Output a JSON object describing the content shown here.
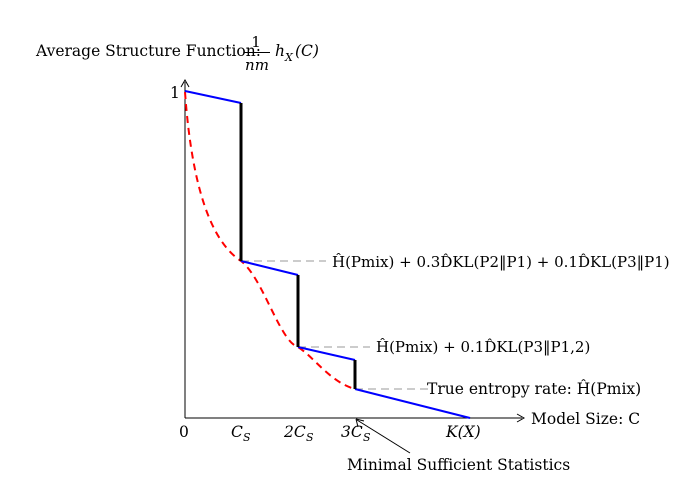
{
  "title": {
    "prefix": "Average Structure Function:",
    "frac_num": "1",
    "frac_den": "nm",
    "func": "h",
    "func_sub": "X",
    "func_arg": "(C)"
  },
  "axes": {
    "x_label": "Model Size: C",
    "y_tick": "1",
    "x_ticks": [
      {
        "base": "0",
        "sub": ""
      },
      {
        "base": "C",
        "sub": "S"
      },
      {
        "base": "2C",
        "sub": "S"
      },
      {
        "base": "3C",
        "sub": "S"
      },
      {
        "base": "K(X)",
        "sub": ""
      }
    ]
  },
  "annotations": {
    "level1": "Ĥ(Pmix) + 0.3D̂KL(P2‖P1) + 0.1D̂KL(P3‖P1)",
    "level2": "Ĥ(Pmix) + 0.1D̂KL(P3‖P1,2)",
    "level3": "True entropy rate: Ĥ(Pmix)",
    "bottom_note": "Minimal Sufficient Statistics"
  },
  "colors": {
    "structure_function": "#0000ff",
    "lower_bound": "#ff0000",
    "jumps": "#000000",
    "guides": "#999999"
  },
  "chart_data": {
    "type": "line",
    "title": "Average Structure Function",
    "xlabel": "Model Size: C",
    "x_ticks": [
      "0",
      "C_S",
      "2C_S",
      "3C_S",
      "K(X)"
    ],
    "y_ticks": [
      "1"
    ],
    "series": [
      {
        "style": "solid-blue",
        "segments": [
          [
            [
              0,
              1.0
            ],
            [
              1,
              0.96
            ]
          ],
          [
            [
              1,
              0.49
            ],
            [
              2,
              0.45
            ]
          ],
          [
            [
              2,
              0.22
            ],
            [
              3,
              0.18
            ]
          ],
          [
            [
              3,
              0.09
            ],
            [
              5,
              0.0
            ]
          ]
        ]
      },
      {
        "style": "solid-black",
        "segments": [
          [
            [
              1,
              0.96
            ],
            [
              1,
              0.49
            ]
          ],
          [
            [
              2,
              0.45
            ],
            [
              2,
              0.22
            ]
          ],
          [
            [
              3,
              0.18
            ],
            [
              3,
              0.09
            ]
          ]
        ]
      },
      {
        "style": "dashed-red",
        "points": [
          [
            0,
            1.0
          ],
          [
            1,
            0.49
          ],
          [
            2,
            0.22
          ],
          [
            3,
            0.09
          ]
        ]
      }
    ]
  }
}
